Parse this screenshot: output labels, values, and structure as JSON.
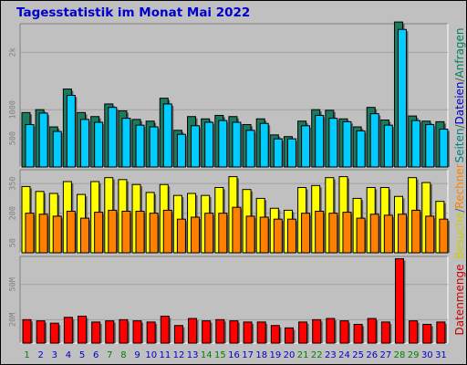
{
  "chart_data": {
    "type": "bar",
    "title": "Tagesstatistik im Monat Mai 2022",
    "days": [
      "1",
      "2",
      "3",
      "4",
      "5",
      "6",
      "7",
      "8",
      "9",
      "10",
      "11",
      "12",
      "13",
      "14",
      "15",
      "16",
      "17",
      "18",
      "19",
      "20",
      "21",
      "22",
      "23",
      "24",
      "25",
      "26",
      "27",
      "28",
      "29",
      "30",
      "31"
    ],
    "weekend_days": [
      "1",
      "7",
      "8",
      "14",
      "15",
      "21",
      "22",
      "28",
      "29"
    ],
    "panels": [
      {
        "name": "requests",
        "yticks": [
          {
            "value": 500,
            "label": "500"
          },
          {
            "value": 1000,
            "label": "1000"
          },
          {
            "value": 2000,
            "label": "2k"
          }
        ],
        "ylim": [
          0,
          2500
        ],
        "series": [
          {
            "name": "Anfragen",
            "color": "#1e7a5f",
            "values": [
              950,
              1000,
              700,
              1360,
              950,
              880,
              1100,
              980,
              830,
              800,
              1200,
              640,
              880,
              840,
              900,
              880,
              740,
              840,
              560,
              530,
              800,
              1000,
              990,
              840,
              700,
              1040,
              820,
              2530,
              890,
              800,
              790
            ]
          },
          {
            "name": "Dateien",
            "color": "#00ccff",
            "values": [
              740,
              940,
              620,
              1250,
              830,
              780,
              1040,
              850,
              730,
              700,
              1100,
              570,
              720,
              780,
              810,
              780,
              640,
              760,
              490,
              490,
              720,
              900,
              850,
              790,
              630,
              930,
              730,
              2400,
              810,
              740,
              660
            ]
          }
        ],
        "side_label": [
          {
            "text": "Seiten",
            "color": "#008080"
          },
          {
            "text": "/",
            "color": "#555555"
          },
          {
            "text": "Dateien",
            "color": "#0000cc"
          },
          {
            "text": "/",
            "color": "#555555"
          },
          {
            "text": "Anfragen",
            "color": "#008060"
          }
        ]
      },
      {
        "name": "hosts",
        "yticks": [
          {
            "value": 50,
            "label": "50"
          },
          {
            "value": 200,
            "label": "200"
          },
          {
            "value": 350,
            "label": "350"
          }
        ],
        "ylim": [
          0,
          420
        ],
        "series": [
          {
            "name": "Besuche",
            "color": "#ffff00",
            "values": [
              335,
              310,
              300,
              360,
              295,
              360,
              380,
              370,
              345,
              305,
              345,
              290,
              300,
              290,
              330,
              385,
              320,
              275,
              225,
              215,
              330,
              340,
              380,
              385,
              275,
              330,
              330,
              285,
              380,
              355,
              260
            ]
          },
          {
            "name": "Rechner",
            "color": "#ff8000",
            "values": [
              200,
              195,
              185,
              210,
              175,
              205,
              215,
              210,
              210,
              200,
              215,
              170,
              180,
              200,
              200,
              230,
              185,
              180,
              170,
              170,
              200,
              210,
              200,
              205,
              175,
              195,
              190,
              195,
              215,
              185,
              170
            ]
          }
        ],
        "side_label": [
          {
            "text": "Besuche",
            "color": "#cccc00"
          },
          {
            "text": "/",
            "color": "#555555"
          },
          {
            "text": "Rechner",
            "color": "#ff8000"
          }
        ]
      },
      {
        "name": "volume",
        "yticks": [
          {
            "value": 20,
            "label": "20M"
          },
          {
            "value": 50,
            "label": "50M"
          }
        ],
        "ylim": [
          0,
          74
        ],
        "series": [
          {
            "name": "Datenmenge",
            "color": "#ff0000",
            "values": [
              20,
              19,
              17,
              22,
              23,
              18,
              19,
              20,
              19,
              18,
              23,
              15,
              21,
              19,
              20,
              19,
              18,
              18,
              15,
              13,
              18,
              20,
              21,
              19,
              16,
              21,
              18,
              72,
              19,
              16,
              18
            ]
          }
        ],
        "side_label": [
          {
            "text": "Datenmenge",
            "color": "#cc0000"
          }
        ]
      }
    ]
  },
  "colors": {
    "background": "#c0c0c0",
    "title": "#0000cc",
    "weekday_label": "#0000cc",
    "weekend_label": "#008000"
  }
}
